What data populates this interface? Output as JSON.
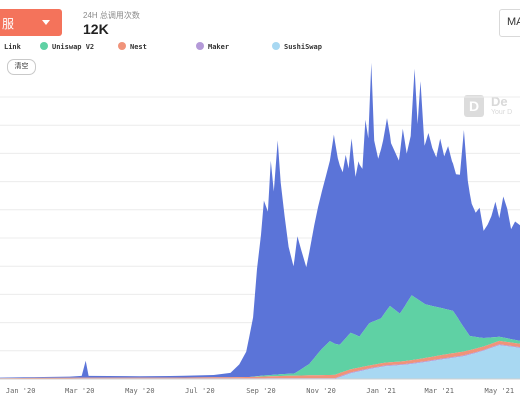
{
  "header": {
    "dropdown_label": "服",
    "stat_label": "24H 总调用次数",
    "stat_value": "12K",
    "right_button_label": "MA"
  },
  "legend": {
    "clear_label": "清空"
  },
  "watermark": {
    "brand": "De",
    "tagline": "Your D"
  },
  "colors": {
    "chainlink": "#5b74d8",
    "uniswap": "#5fd1a4",
    "nest": "#f0937a",
    "maker": "#b49ad8",
    "sushiswap": "#a8d8f2"
  },
  "chart_data": {
    "type": "area",
    "title": "",
    "xlabel": "",
    "ylabel": "",
    "stacked": true,
    "grid": true,
    "legend_position": "top",
    "ylim": [
      0,
      1000
    ],
    "xlim": [
      "2019-12-11",
      "2021-05-22"
    ],
    "x_tick_labels": [
      {
        "date": "2020-01-01",
        "label": "Jan '20"
      },
      {
        "date": "2020-03-01",
        "label": "Mar '20"
      },
      {
        "date": "2020-05-01",
        "label": "May '20"
      },
      {
        "date": "2020-07-01",
        "label": "Jul '20"
      },
      {
        "date": "2020-09-01",
        "label": "Sep '20"
      },
      {
        "date": "2020-11-01",
        "label": "Nov '20"
      },
      {
        "date": "2021-01-01",
        "label": "Jan '21"
      },
      {
        "date": "2021-03-01",
        "label": "Mar '21"
      },
      {
        "date": "2021-05-01",
        "label": "May '21"
      }
    ],
    "series": [
      {
        "name": "Link",
        "color": "#5b74d8",
        "points": [
          [
            "2019-12-11",
            2
          ],
          [
            "2020-01-15",
            3
          ],
          [
            "2020-02-20",
            4
          ],
          [
            "2020-03-03",
            6
          ],
          [
            "2020-03-07",
            60
          ],
          [
            "2020-03-10",
            6
          ],
          [
            "2020-05-01",
            5
          ],
          [
            "2020-06-15",
            6
          ],
          [
            "2020-07-15",
            8
          ],
          [
            "2020-08-01",
            15
          ],
          [
            "2020-08-10",
            45
          ],
          [
            "2020-08-17",
            90
          ],
          [
            "2020-08-24",
            210
          ],
          [
            "2020-08-28",
            380
          ],
          [
            "2020-09-01",
            500
          ],
          [
            "2020-09-04",
            620
          ],
          [
            "2020-09-08",
            580
          ],
          [
            "2020-09-11",
            760
          ],
          [
            "2020-09-14",
            650
          ],
          [
            "2020-09-18",
            830
          ],
          [
            "2020-09-21",
            680
          ],
          [
            "2020-09-25",
            560
          ],
          [
            "2020-09-29",
            450
          ],
          [
            "2020-10-04",
            380
          ],
          [
            "2020-10-08",
            480
          ],
          [
            "2020-10-12",
            420
          ],
          [
            "2020-10-17",
            350
          ],
          [
            "2020-10-21",
            410
          ],
          [
            "2020-10-25",
            470
          ],
          [
            "2020-10-29",
            520
          ],
          [
            "2020-11-02",
            560
          ],
          [
            "2020-11-06",
            600
          ],
          [
            "2020-11-10",
            640
          ],
          [
            "2020-11-14",
            740
          ],
          [
            "2020-11-18",
            660
          ],
          [
            "2020-11-23",
            600
          ],
          [
            "2020-11-26",
            650
          ],
          [
            "2020-11-29",
            590
          ],
          [
            "2020-12-02",
            690
          ],
          [
            "2020-12-06",
            560
          ],
          [
            "2020-12-09",
            620
          ],
          [
            "2020-12-13",
            580
          ],
          [
            "2020-12-16",
            740
          ],
          [
            "2020-12-19",
            660
          ],
          [
            "2020-12-22",
            920
          ],
          [
            "2020-12-25",
            640
          ],
          [
            "2020-12-29",
            570
          ],
          [
            "2021-01-03",
            620
          ],
          [
            "2021-01-07",
            680
          ],
          [
            "2021-01-11",
            580
          ],
          [
            "2021-01-15",
            560
          ],
          [
            "2021-01-19",
            540
          ],
          [
            "2021-01-23",
            640
          ],
          [
            "2021-01-27",
            530
          ],
          [
            "2021-01-31",
            570
          ],
          [
            "2021-02-04",
            810
          ],
          [
            "2021-02-07",
            620
          ],
          [
            "2021-02-10",
            780
          ],
          [
            "2021-02-14",
            560
          ],
          [
            "2021-02-18",
            610
          ],
          [
            "2021-02-22",
            560
          ],
          [
            "2021-02-26",
            530
          ],
          [
            "2021-03-02",
            600
          ],
          [
            "2021-03-06",
            540
          ],
          [
            "2021-03-10",
            580
          ],
          [
            "2021-03-14",
            530
          ],
          [
            "2021-03-18",
            500
          ],
          [
            "2021-03-22",
            520
          ],
          [
            "2021-03-26",
            700
          ],
          [
            "2021-03-30",
            540
          ],
          [
            "2021-04-03",
            470
          ],
          [
            "2021-04-07",
            440
          ],
          [
            "2021-04-11",
            460
          ],
          [
            "2021-04-15",
            380
          ],
          [
            "2021-04-19",
            400
          ],
          [
            "2021-04-23",
            430
          ],
          [
            "2021-04-27",
            480
          ],
          [
            "2021-05-01",
            420
          ],
          [
            "2021-05-05",
            500
          ],
          [
            "2021-05-09",
            460
          ],
          [
            "2021-05-13",
            390
          ],
          [
            "2021-05-17",
            420
          ],
          [
            "2021-05-22",
            410
          ]
        ]
      },
      {
        "name": "Uniswap V2",
        "color": "#5fd1a4",
        "points": [
          [
            "2019-12-11",
            0
          ],
          [
            "2020-08-20",
            0
          ],
          [
            "2020-09-05",
            4
          ],
          [
            "2020-10-05",
            8
          ],
          [
            "2020-10-20",
            40
          ],
          [
            "2020-11-01",
            90
          ],
          [
            "2020-11-10",
            120
          ],
          [
            "2020-11-20",
            100
          ],
          [
            "2020-12-01",
            130
          ],
          [
            "2020-12-10",
            110
          ],
          [
            "2020-12-20",
            150
          ],
          [
            "2021-01-01",
            160
          ],
          [
            "2021-01-10",
            200
          ],
          [
            "2021-01-20",
            170
          ],
          [
            "2021-02-01",
            230
          ],
          [
            "2021-02-15",
            190
          ],
          [
            "2021-03-01",
            170
          ],
          [
            "2021-03-15",
            150
          ],
          [
            "2021-04-01",
            50
          ],
          [
            "2021-04-15",
            30
          ],
          [
            "2021-05-01",
            15
          ],
          [
            "2021-05-22",
            10
          ]
        ]
      },
      {
        "name": "Nest",
        "color": "#f0937a",
        "points": [
          [
            "2019-12-11",
            2
          ],
          [
            "2020-03-07",
            3
          ],
          [
            "2020-06-01",
            3
          ],
          [
            "2020-08-20",
            5
          ],
          [
            "2020-09-20",
            8
          ],
          [
            "2020-10-20",
            10
          ],
          [
            "2020-11-20",
            12
          ],
          [
            "2020-12-20",
            10
          ],
          [
            "2021-01-20",
            10
          ],
          [
            "2021-02-20",
            12
          ],
          [
            "2021-03-20",
            14
          ],
          [
            "2021-04-20",
            12
          ],
          [
            "2021-05-22",
            12
          ]
        ]
      },
      {
        "name": "Maker",
        "color": "#b49ad8",
        "points": [
          [
            "2019-12-11",
            1
          ],
          [
            "2020-03-07",
            2
          ],
          [
            "2020-06-01",
            2
          ],
          [
            "2020-08-20",
            2
          ],
          [
            "2020-10-20",
            3
          ],
          [
            "2020-12-20",
            3
          ],
          [
            "2021-02-20",
            3
          ],
          [
            "2021-05-22",
            3
          ]
        ]
      },
      {
        "name": "SushiSwap",
        "color": "#a8d8f2",
        "points": [
          [
            "2019-12-11",
            0
          ],
          [
            "2020-11-15",
            0
          ],
          [
            "2020-12-01",
            20
          ],
          [
            "2020-12-20",
            35
          ],
          [
            "2021-01-05",
            45
          ],
          [
            "2021-01-25",
            50
          ],
          [
            "2021-02-15",
            60
          ],
          [
            "2021-03-05",
            70
          ],
          [
            "2021-03-25",
            80
          ],
          [
            "2021-04-05",
            90
          ],
          [
            "2021-04-15",
            100
          ],
          [
            "2021-05-01",
            120
          ],
          [
            "2021-05-22",
            110
          ]
        ]
      }
    ]
  }
}
